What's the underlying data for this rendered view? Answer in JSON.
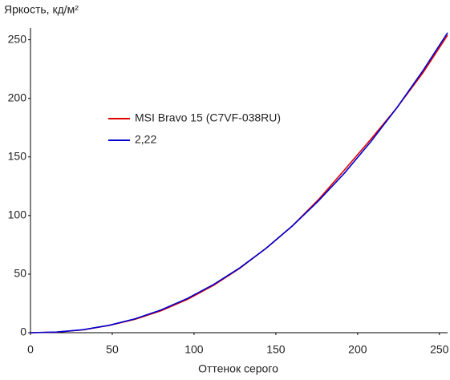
{
  "chart_data": {
    "type": "line",
    "y_label": "Яркость, кд/м²",
    "x_label": "Оттенок серого",
    "x": [
      0,
      16,
      32,
      48,
      64,
      80,
      96,
      112,
      128,
      144,
      160,
      176,
      192,
      208,
      224,
      240,
      255
    ],
    "series": [
      {
        "name": "MSI Bravo 15 (C7VF-038RU)",
        "color": "#e00000",
        "values": [
          0,
          0.5,
          2.4,
          6.2,
          11.5,
          18.8,
          28.5,
          40.5,
          55,
          72,
          91,
          113.5,
          139,
          165,
          192,
          222,
          254
        ]
      },
      {
        "name": "2,22",
        "color": "#0000d0",
        "values": [
          0,
          0.55,
          2.55,
          6.3,
          11.9,
          19.5,
          29.3,
          41.2,
          55.4,
          72,
          91,
          112.4,
          136.3,
          162.9,
          192,
          223.8,
          256
        ]
      }
    ],
    "xlim": [
      0,
      255
    ],
    "ylim": [
      0,
      260
    ],
    "xticks": [
      0,
      50,
      100,
      150,
      200,
      250
    ],
    "yticks": [
      0,
      50,
      100,
      150,
      200,
      250
    ],
    "grid": false
  }
}
